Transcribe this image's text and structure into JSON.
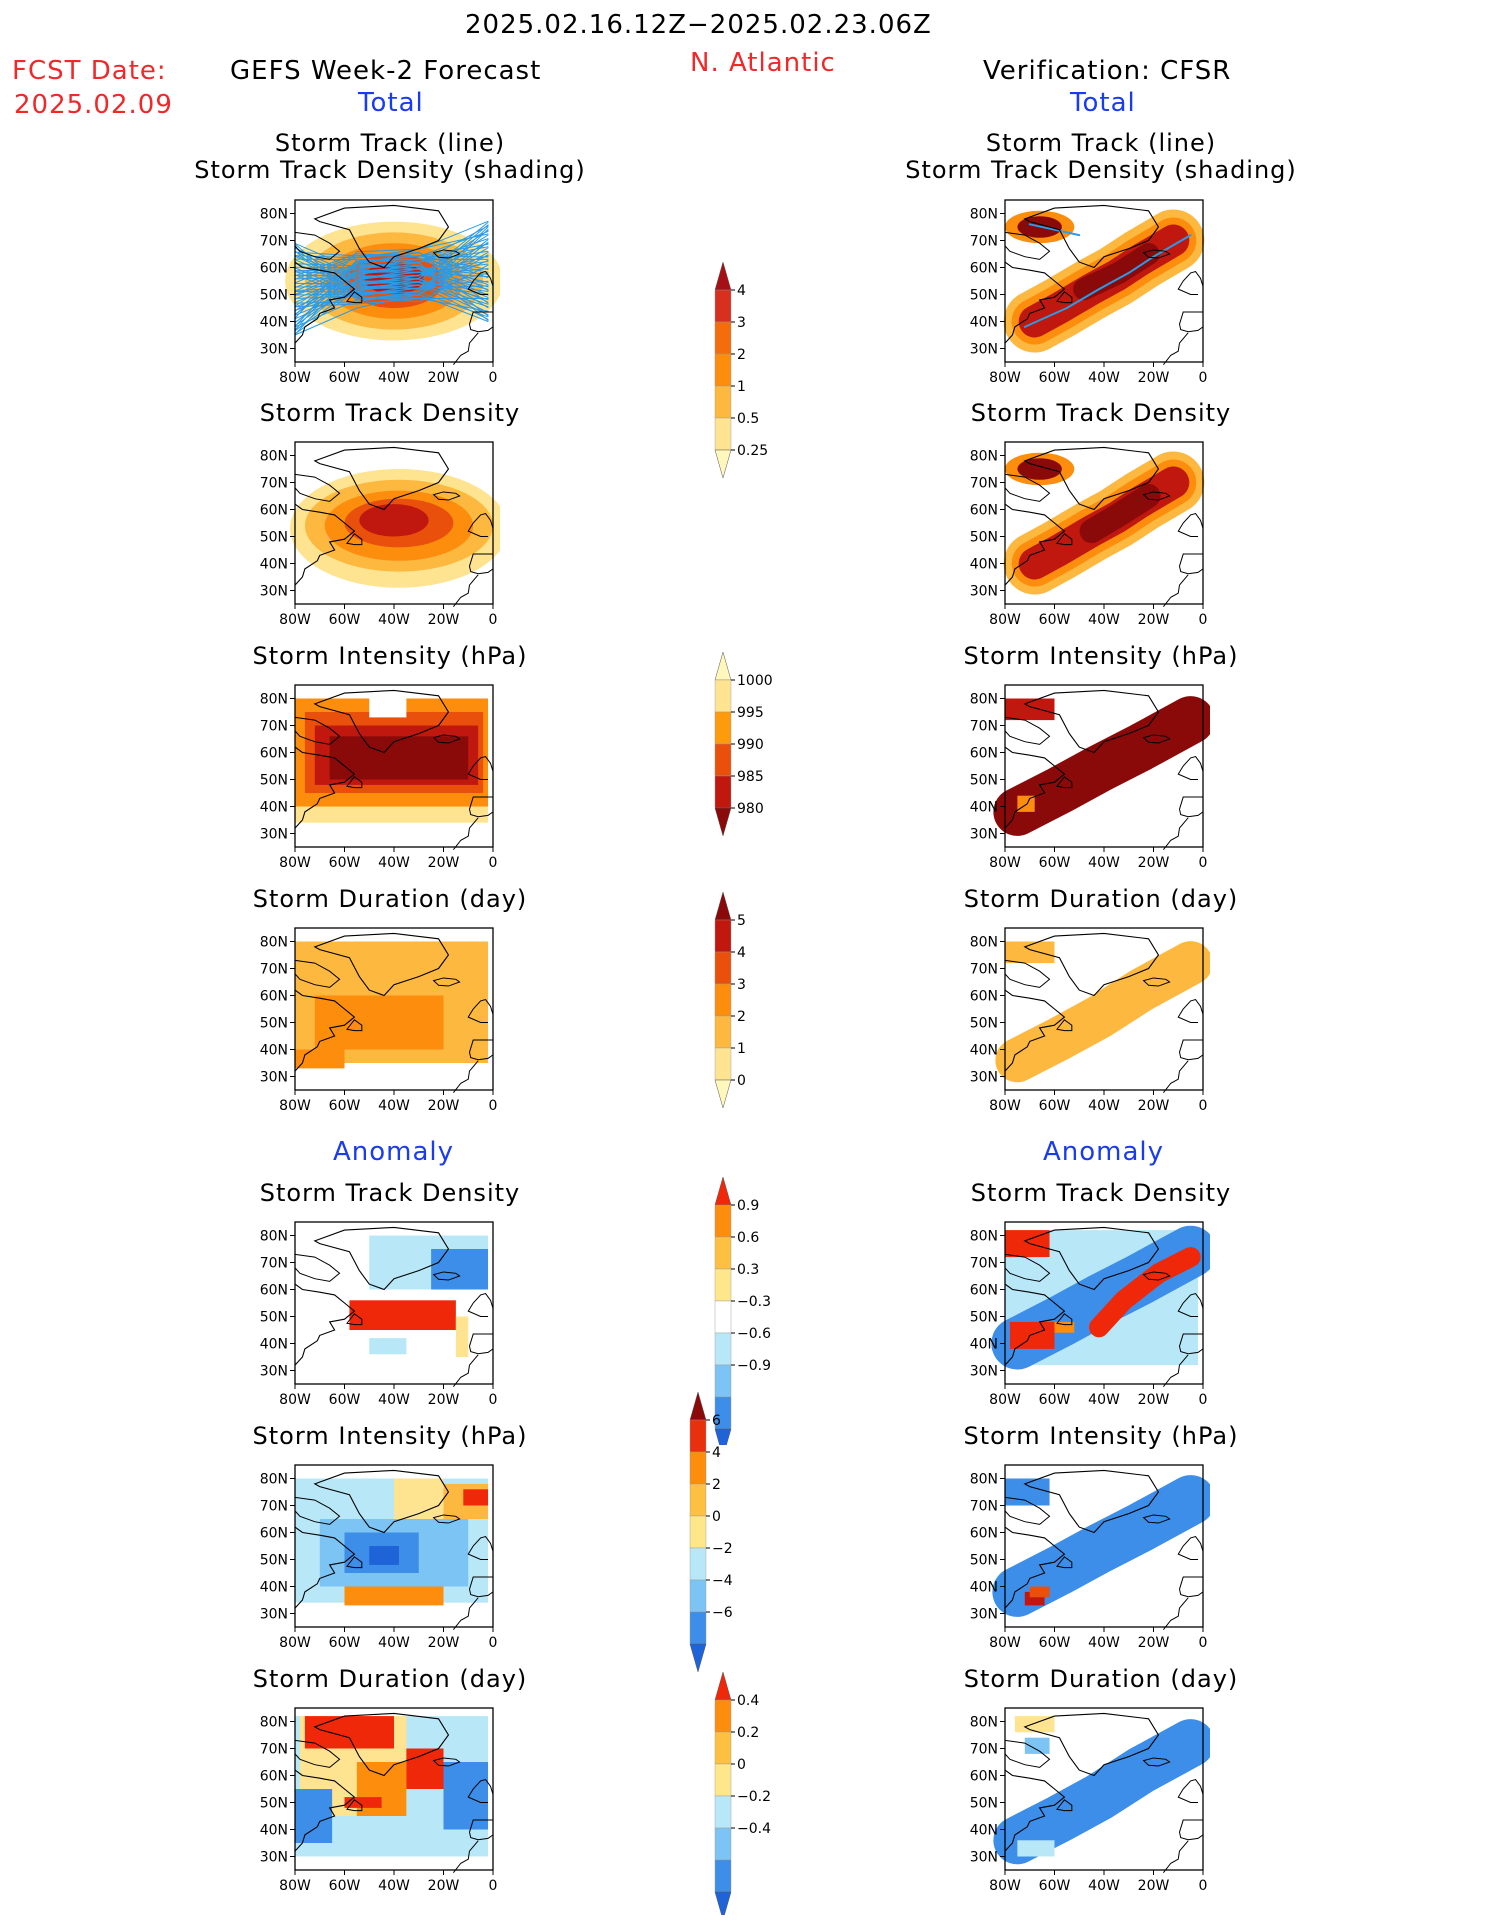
{
  "header": {
    "date_range": "2025.02.16.12Z−2025.02.23.06Z",
    "fcst_label": "FCST Date:",
    "fcst_date": "2025.02.09",
    "left_title": "GEFS Week-2 Forecast",
    "region": "N. Atlantic",
    "right_title": "Verification: CFSR",
    "left_total": "Total",
    "right_total": "Total",
    "left_anomaly": "Anomaly",
    "right_anomaly": "Anomaly"
  },
  "panel_titles": {
    "track_line": "Storm Track (line)",
    "track_shading": "Storm Track Density (shading)",
    "density": "Storm Track Density",
    "intensity": "Storm Intensity (hPa)",
    "duration": "Storm Duration (day)"
  },
  "axes": {
    "lat_ticks": [
      "80N",
      "70N",
      "60N",
      "50N",
      "40N",
      "30N"
    ],
    "lon_ticks": [
      "80W",
      "60W",
      "40W",
      "20W",
      "0"
    ]
  },
  "colorbars": {
    "density": {
      "labels": [
        "4",
        "3",
        "2",
        "1",
        "0.5",
        "0.25"
      ],
      "colors": [
        "#a50f15",
        "#d7301f",
        "#f46d0d",
        "#fd8d0c",
        "#fdb840",
        "#fee391",
        "#fff7bc"
      ]
    },
    "intensity": {
      "labels": [
        "1000",
        "995",
        "990",
        "985",
        "980"
      ],
      "colors": [
        "#fff7bc",
        "#fee391",
        "#fd9b0c",
        "#e8500c",
        "#c0170f",
        "#8a0a0a"
      ]
    },
    "duration": {
      "labels": [
        "5",
        "4",
        "3",
        "2",
        "1",
        "0"
      ],
      "colors": [
        "#8a0a0a",
        "#c0170f",
        "#e8500c",
        "#fd8d0c",
        "#fdb840",
        "#fee391",
        "#fff7bc"
      ]
    },
    "anom_density": {
      "labels": [
        "0.9",
        "0.6",
        "0.3",
        "−0.3",
        "−0.6",
        "−0.9"
      ],
      "colors": [
        "#f0280a",
        "#fd8d0c",
        "#fdc040",
        "#fee78a",
        "#ffffff",
        "#b8e8f8",
        "#7cc4f4",
        "#3c8ee8",
        "#1e64d8"
      ]
    },
    "anom_intensity": {
      "labels": [
        "6",
        "4",
        "2",
        "0",
        "−2",
        "−4",
        "−6"
      ],
      "colors": [
        "#8a0a0a",
        "#e8300c",
        "#fd8d0c",
        "#fdc040",
        "#fee78a",
        "#b8e8f8",
        "#7cc4f4",
        "#3c8ee8",
        "#1e64d8"
      ]
    },
    "anom_duration": {
      "labels": [
        "0.4",
        "0.2",
        "0",
        "−0.2",
        "−0.4"
      ],
      "colors": [
        "#f0280a",
        "#fd8d0c",
        "#fdc040",
        "#fee78a",
        "#b8e8f8",
        "#7cc4f4",
        "#3c8ee8",
        "#1e64d8"
      ]
    }
  }
}
